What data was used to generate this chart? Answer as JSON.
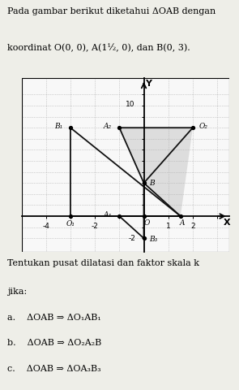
{
  "xlim": [
    -5.0,
    3.5
  ],
  "ylim": [
    -3.2,
    12.5
  ],
  "xtick_vals": [
    -4,
    -3,
    -2,
    -1,
    0,
    1,
    2,
    3
  ],
  "ytick_vals": [
    -2,
    -1,
    0,
    1,
    2,
    3,
    4,
    5,
    6,
    7,
    8,
    9,
    10,
    11
  ],
  "xlabel": "X",
  "ylabel": "Y",
  "grid_color": "#aaaaaa",
  "background_color": "#eeeee8",
  "plot_bg": "#f8f8f8",
  "O": [
    0,
    0
  ],
  "A": [
    1.5,
    0
  ],
  "B": [
    0,
    3
  ],
  "O1": [
    -3,
    0
  ],
  "B1": [
    -3,
    8
  ],
  "A2": [
    -1,
    8
  ],
  "O2": [
    2,
    8
  ],
  "A3": [
    -1,
    0
  ],
  "B3": [
    0,
    -2
  ],
  "shade_color": "#c8c8c8",
  "shade_alpha": 0.55,
  "line_color": "#111111",
  "dot_color": "#111111",
  "label_fontsize": 6.5,
  "tick_fontsize": 6.5,
  "top_line1": "Pada gambar berikut diketahui ΔOAB dengan",
  "top_line2": "koordinat O(0, 0), A(1½, 0), dan B(0, 3).",
  "bot_line0": "Tentukan pusat dilatasi dan faktor skala k",
  "bot_line1": "jika:",
  "bot_item_a": "a.    ΔOAB ⇒ ΔO₁AB₁",
  "bot_item_b": "b.    ΔOAB ⇒ ΔO₂A₂B",
  "bot_item_c": "c.    ΔOAB ⇒ ΔOA₃B₃",
  "text_fontsize": 8.0,
  "fig_w": 2.95,
  "fig_h": 4.8,
  "dpi": 100
}
